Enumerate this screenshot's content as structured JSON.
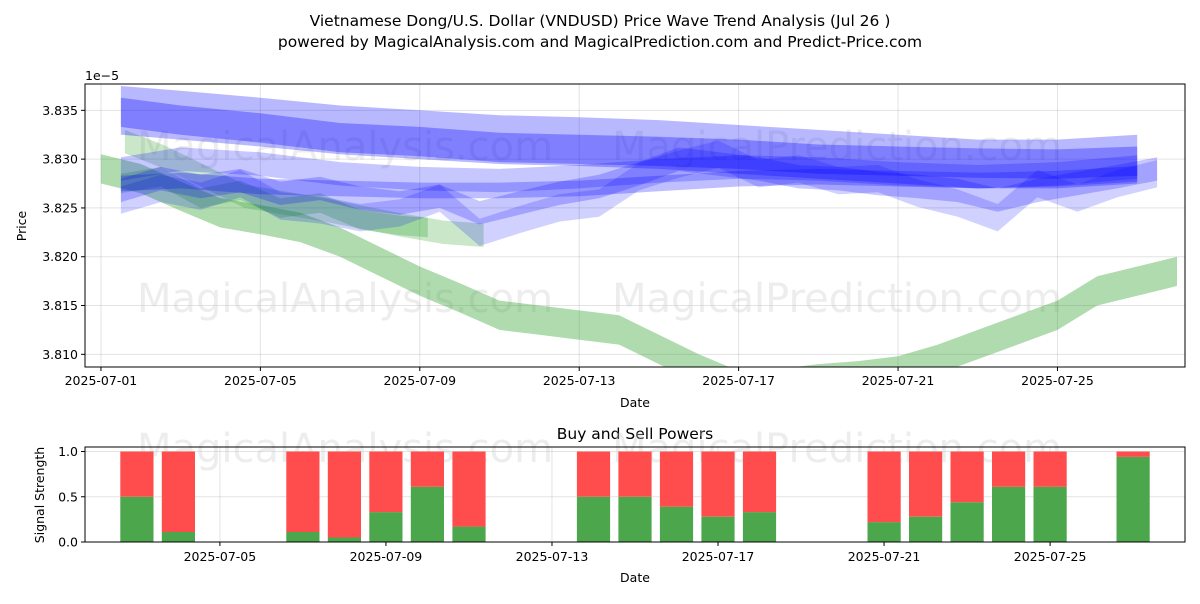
{
  "page": {
    "title": "Vietnamese Dong/U.S. Dollar (VNDUSD) Price Wave Trend Analysis (Jul 26 )",
    "subtitle": "powered by MagicalAnalysis.com and MagicalPrediction.com and Predict-Price.com",
    "watermarks": [
      "MagicalAnalysis.com",
      "MagicalPrediction.com"
    ]
  },
  "chart_data": [
    {
      "type": "area",
      "name": "price-wave-chart",
      "xlabel": "Date",
      "ylabel": "Price",
      "y_offset_label": "1e−5",
      "x_tick_labels": [
        "2025-07-01",
        "2025-07-05",
        "2025-07-09",
        "2025-07-13",
        "2025-07-17",
        "2025-07-21",
        "2025-07-25"
      ],
      "x_tick_days": [
        1,
        5,
        9,
        13,
        17,
        21,
        25
      ],
      "xlim": [
        0.6,
        28.2
      ],
      "y_ticks": [
        3.81,
        3.815,
        3.82,
        3.825,
        3.83,
        3.835
      ],
      "y_tick_labels": [
        "3.810",
        "3.815",
        "3.820",
        "3.825",
        "3.830",
        "3.835"
      ],
      "ylim": [
        3.8087,
        3.8377
      ],
      "grid": true,
      "colors": {
        "green_band": "#2ca02c",
        "blue_band": "#0000ff"
      },
      "bands": [
        {
          "color": "green",
          "opacity": 0.38,
          "x": [
            1,
            2,
            3,
            4,
            5,
            6,
            7,
            8,
            9,
            10,
            11,
            12,
            13,
            14,
            15,
            16,
            17,
            18,
            19,
            20,
            21,
            22,
            23,
            24,
            25,
            26,
            27,
            28
          ],
          "center": [
            3.829,
            3.828,
            3.8262,
            3.8245,
            3.8238,
            3.823,
            3.8215,
            3.8195,
            3.8175,
            3.8158,
            3.814,
            3.8135,
            3.813,
            3.8125,
            3.8105,
            3.8085,
            3.8068,
            3.807,
            3.8075,
            3.8078,
            3.8083,
            3.8095,
            3.811,
            3.8125,
            3.814,
            3.8165,
            3.8175,
            3.8185
          ],
          "half_width": 0.0015
        },
        {
          "color": "green",
          "opacity": 0.25,
          "x": [
            1.6,
            2.6,
            3.6,
            4.6,
            5.6,
            6.6,
            7.6,
            8.6,
            9.6,
            10.6
          ],
          "center": [
            3.8318,
            3.8302,
            3.8282,
            3.8262,
            3.8255,
            3.8248,
            3.824,
            3.8232,
            3.8225,
            3.8222
          ],
          "half_width": 0.0012
        },
        {
          "color": "green",
          "opacity": 0.28,
          "x": [
            1.5,
            2.5,
            3.5,
            4.5,
            5.5,
            6.5,
            7.5,
            8.5,
            9.2
          ],
          "center": [
            3.8275,
            3.8282,
            3.826,
            3.8268,
            3.825,
            3.8255,
            3.8238,
            3.8232,
            3.823
          ],
          "half_width": 0.001
        },
        {
          "color": "blue",
          "opacity": 0.28,
          "x": [
            1.5,
            3,
            5,
            7,
            9,
            11,
            13,
            15,
            17,
            19,
            21,
            23,
            25,
            27
          ],
          "center": [
            3.835,
            3.8345,
            3.8338,
            3.833,
            3.8325,
            3.832,
            3.8318,
            3.8315,
            3.831,
            3.8305,
            3.83,
            3.8295,
            3.8295,
            3.83
          ],
          "half_width": 0.0025
        },
        {
          "color": "blue",
          "opacity": 0.3,
          "x": [
            1.5,
            3,
            5,
            7,
            9,
            11,
            13,
            15,
            17,
            19,
            21,
            23,
            25,
            27
          ],
          "center": [
            3.8348,
            3.834,
            3.8332,
            3.8322,
            3.8318,
            3.8312,
            3.831,
            3.8308,
            3.8305,
            3.83,
            3.8298,
            3.8296,
            3.8295,
            3.8298
          ],
          "half_width": 0.0015
        },
        {
          "color": "blue",
          "opacity": 0.22,
          "x": [
            1.5,
            3,
            5,
            7,
            9,
            11,
            13,
            15,
            17,
            19,
            21,
            23,
            25,
            27
          ],
          "center": [
            3.829,
            3.83,
            3.8295,
            3.8285,
            3.828,
            3.8278,
            3.8282,
            3.8288,
            3.8292,
            3.829,
            3.8285,
            3.8282,
            3.8285,
            3.8292
          ],
          "half_width": 0.0012
        },
        {
          "color": "blue",
          "opacity": 0.22,
          "x": [
            1.5,
            2.5,
            3.5,
            4.5,
            5.5,
            6.5,
            7.5,
            8.5,
            9.5,
            10.5,
            11.5,
            12.5,
            13.5,
            14.5,
            15.5,
            16.5,
            17.5,
            18.5,
            19.5,
            20.5,
            21.5,
            22.5,
            23.5,
            24.5,
            25.5,
            26.5,
            27.5
          ],
          "center": [
            3.8268,
            3.828,
            3.8272,
            3.8278,
            3.8265,
            3.827,
            3.826,
            3.8255,
            3.8262,
            3.8245,
            3.8255,
            3.8265,
            3.8272,
            3.8285,
            3.83,
            3.8295,
            3.829,
            3.8282,
            3.828,
            3.8275,
            3.8272,
            3.8268,
            3.8258,
            3.8268,
            3.8275,
            3.8282,
            3.829
          ],
          "half_width": 0.0012
        },
        {
          "color": "blue",
          "opacity": 0.18,
          "x": [
            1.5,
            2.5,
            3.5,
            4.5,
            5.5,
            6.5,
            7.5,
            8.5,
            9.5,
            10.5,
            11.5,
            12.5,
            13.5,
            14.5,
            15.5,
            16.5,
            17.5,
            18.5,
            19.5,
            20.5,
            21.5,
            22.5,
            23.5,
            24.5,
            25.5,
            26.5,
            27.5
          ],
          "center": [
            3.8258,
            3.827,
            3.8262,
            3.8275,
            3.8252,
            3.8248,
            3.824,
            3.8245,
            3.826,
            3.8225,
            3.8238,
            3.825,
            3.8255,
            3.8282,
            3.8295,
            3.8305,
            3.8285,
            3.829,
            3.8278,
            3.828,
            3.8265,
            3.8255,
            3.824,
            3.8275,
            3.826,
            3.8275,
            3.8285
          ],
          "half_width": 0.0014
        },
        {
          "color": "blue",
          "opacity": 0.25,
          "x": [
            1.5,
            3,
            5,
            7,
            9,
            11,
            13,
            15,
            17,
            19,
            21,
            23,
            25,
            27
          ],
          "center": [
            3.8275,
            3.8278,
            3.8272,
            3.827,
            3.8268,
            3.8268,
            3.827,
            3.8275,
            3.828,
            3.8282,
            3.828,
            3.8278,
            3.828,
            3.8285
          ],
          "half_width": 0.0008
        }
      ]
    },
    {
      "type": "bar",
      "name": "buy-sell-powers-chart",
      "title": "Buy and Sell Powers",
      "xlabel": "Date",
      "ylabel": "Signal Strength",
      "x_tick_labels": [
        "2025-07-05",
        "2025-07-09",
        "2025-07-13",
        "2025-07-17",
        "2025-07-21",
        "2025-07-25"
      ],
      "x_tick_days": [
        5,
        9,
        13,
        17,
        21,
        25
      ],
      "xlim": [
        1.75,
        28.25
      ],
      "y_ticks": [
        0.0,
        0.5,
        1.0
      ],
      "y_tick_labels": [
        "0.0",
        "0.5",
        "1.0"
      ],
      "ylim": [
        0,
        1.05
      ],
      "grid": true,
      "colors": {
        "buy": "#4ca64c",
        "sell": "#ff4c4c"
      },
      "days": [
        3,
        4,
        7,
        8,
        9,
        10,
        11,
        14,
        15,
        16,
        17,
        18,
        21,
        22,
        23,
        24,
        25,
        27
      ],
      "buy": [
        0.5,
        0.11,
        0.11,
        0.05,
        0.33,
        0.61,
        0.17,
        0.5,
        0.5,
        0.39,
        0.28,
        0.33,
        0.22,
        0.28,
        0.44,
        0.61,
        0.61,
        0.94
      ],
      "sell": [
        0.5,
        0.89,
        0.89,
        0.95,
        0.67,
        0.39,
        0.83,
        0.5,
        0.5,
        0.61,
        0.72,
        0.67,
        0.78,
        0.72,
        0.56,
        0.39,
        0.39,
        0.06
      ]
    }
  ]
}
